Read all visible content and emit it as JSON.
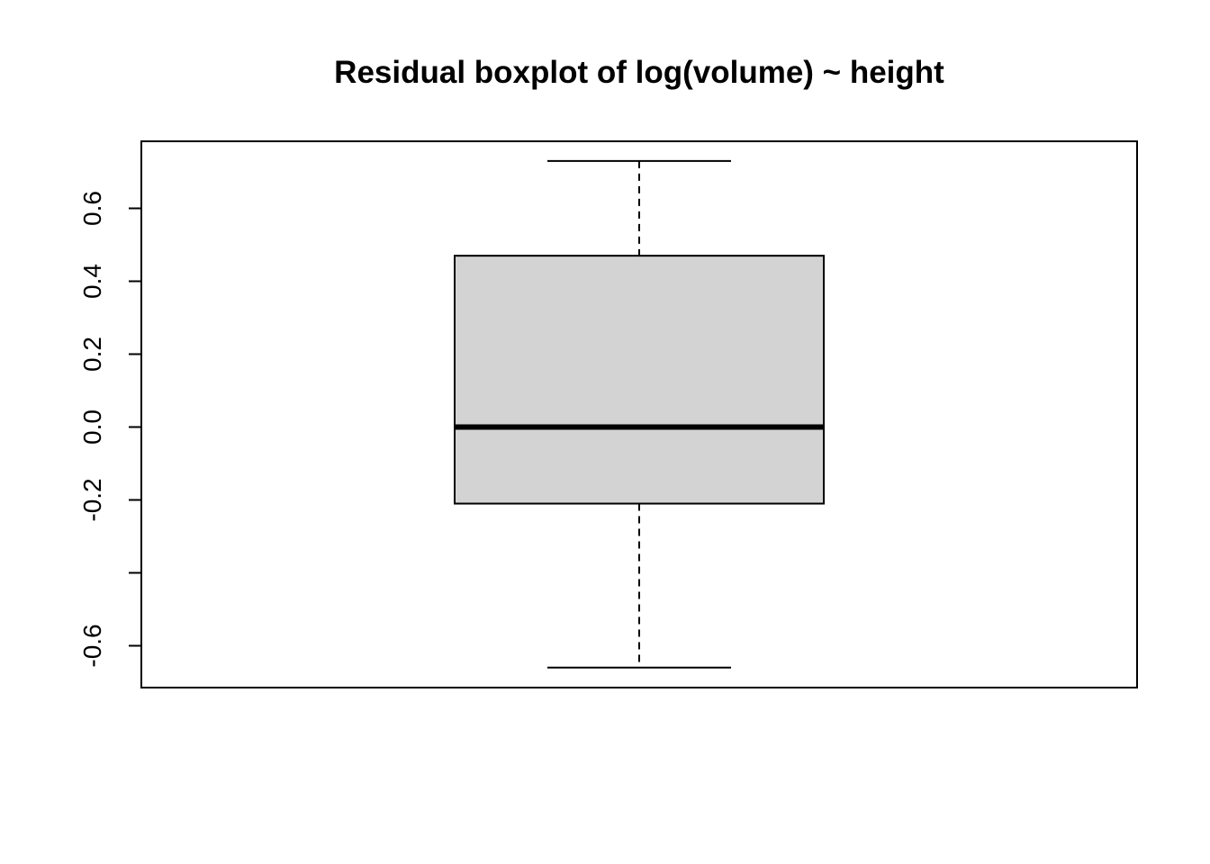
{
  "chart_data": {
    "type": "boxplot",
    "title": "Residual boxplot of log(volume) ~ height",
    "xlabel": "",
    "ylabel": "",
    "ylim": [
      -0.7,
      0.8
    ],
    "y_ticks": [
      -0.6,
      -0.4,
      -0.2,
      0.0,
      0.2,
      0.4,
      0.6
    ],
    "y_tick_labels": [
      "-0.6",
      "",
      "-0.2",
      "0.0",
      "0.2",
      "0.4",
      "0.6"
    ],
    "box": {
      "whisker_low": -0.66,
      "q1": -0.21,
      "median": 0.0,
      "q3": 0.47,
      "whisker_high": 0.73
    },
    "box_fill": "#d3d3d3",
    "line_color": "#000000",
    "grid": false,
    "legend": "none"
  }
}
